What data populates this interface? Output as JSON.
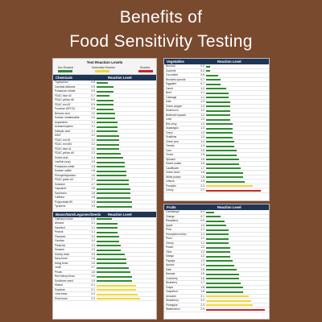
{
  "header": {
    "line1": "Benefits of",
    "line2": "Food Sensitivity Testing"
  },
  "colors": {
    "background": "#7a4a2e",
    "header": "#1f3556",
    "green": "#2e8b2e",
    "yellow": "#f0d72a",
    "red": "#c62828"
  },
  "legend": {
    "title": "Test Reaction Levels",
    "items": [
      {
        "label": "Non-Reactive",
        "color": "#2e8b2e"
      },
      {
        "label": "Moderately Reactive",
        "color": "#f0d72a"
      },
      {
        "label": "Reactive",
        "color": "#c62828"
      }
    ]
  },
  "reaction_level_label": "Reaction Level",
  "panels": [
    {
      "id": "chemicals",
      "title": "Chemicals",
      "max": 3.0,
      "items": [
        {
          "name": "Tryptophan",
          "value": "0.6"
        },
        {
          "name": "Candida albicans",
          "value": "0.9"
        },
        {
          "name": "Potassium nitrate",
          "value": "0.9"
        },
        {
          "name": "FD&C blue #2",
          "value": "0.7"
        },
        {
          "name": "FD&C yellow #6",
          "value": "0.9"
        },
        {
          "name": "FD&C red #3",
          "value": "0.9"
        },
        {
          "name": "Fructose (HFCS)",
          "value": "0.9"
        },
        {
          "name": "Benzoic acid",
          "value": "1.0"
        },
        {
          "name": "Sodium metabisulfite",
          "value": "1.0"
        },
        {
          "name": "Aspartame",
          "value": "1.1"
        },
        {
          "name": "Acetaminophen",
          "value": "1.1"
        },
        {
          "name": "Salicylic acid",
          "value": "1.1"
        },
        {
          "name": "MSG",
          "value": "1.2"
        },
        {
          "name": "FD&C red #4",
          "value": "1.2"
        },
        {
          "name": "FD&C red #40",
          "value": "1.2"
        },
        {
          "name": "FD&C blue #1",
          "value": "1.2"
        },
        {
          "name": "FD&C yellow #5",
          "value": "1.3"
        },
        {
          "name": "Sorbic acid",
          "value": "1.4"
        },
        {
          "name": "Lecithin (soy)",
          "value": "1.5"
        },
        {
          "name": "Potassium nitrite",
          "value": "1.5"
        },
        {
          "name": "Sodium sulfite",
          "value": "1.6"
        },
        {
          "name": "Phenylethylamine",
          "value": "1.6"
        },
        {
          "name": "FD&C green #3",
          "value": "1.7"
        },
        {
          "name": "Solanine",
          "value": "1.7"
        },
        {
          "name": "Capsaicin",
          "value": "1.8"
        },
        {
          "name": "Saccharin",
          "value": "1.8"
        },
        {
          "name": "Caffeine",
          "value": "1.8"
        },
        {
          "name": "Polysorbate 80",
          "value": "1.9"
        },
        {
          "name": "Tyramine",
          "value": "1.9"
        }
      ]
    },
    {
      "id": "beans",
      "title": "Beans/Nuts/Legumes/Seeds",
      "max": 3.0,
      "items": [
        {
          "name": "Garbanzo bean",
          "value": "0.8"
        },
        {
          "name": "Almond",
          "value": "1.1"
        },
        {
          "name": "Hazelnut",
          "value": "1.1"
        },
        {
          "name": "Peanut",
          "value": "1.1"
        },
        {
          "name": "Flaxseed",
          "value": "1.2"
        },
        {
          "name": "Cashew",
          "value": "1.2"
        },
        {
          "name": "Pistachio",
          "value": "1.3"
        },
        {
          "name": "Sesame",
          "value": "1.3"
        },
        {
          "name": "Kidney bean",
          "value": "1.5"
        },
        {
          "name": "Navy bean",
          "value": "1.6"
        },
        {
          "name": "Mung bean",
          "value": "1.6"
        },
        {
          "name": "Lentil",
          "value": "1.7"
        },
        {
          "name": "Pecan",
          "value": "1.8"
        },
        {
          "name": "Red kidney bean",
          "value": "1.9"
        },
        {
          "name": "Sunflower seed",
          "value": "1.9"
        },
        {
          "name": "Walnut",
          "value": "2.1"
        },
        {
          "name": "Soybean",
          "value": "2.1"
        },
        {
          "name": "Lima bean",
          "value": "2.2"
        },
        {
          "name": "Pinto bean",
          "value": "2.3"
        }
      ]
    },
    {
      "id": "vegetables",
      "title": "Vegetables",
      "max": 3.0,
      "items": [
        {
          "name": "Broccoli",
          "value": "0.2"
        },
        {
          "name": "Zucchini",
          "value": "0.2"
        },
        {
          "name": "Cucumber",
          "value": "0.6"
        },
        {
          "name": "Brussels sprouts",
          "value": "0.7"
        },
        {
          "name": "Eggplant",
          "value": "0.7"
        },
        {
          "name": "Carrot",
          "value": "1.0"
        },
        {
          "name": "Beet",
          "value": "1.1"
        },
        {
          "name": "Cabbage",
          "value": "1.1"
        },
        {
          "name": "Kale",
          "value": "1.2"
        },
        {
          "name": "Green pepper",
          "value": "1.2"
        },
        {
          "name": "Mushroom",
          "value": "1.2"
        },
        {
          "name": "Butternut squash",
          "value": "1.2"
        },
        {
          "name": "Leek",
          "value": "1.2"
        },
        {
          "name": "Bok choy",
          "value": "1.3"
        },
        {
          "name": "Asparagus",
          "value": "1.3"
        },
        {
          "name": "Onion",
          "value": "1.3"
        },
        {
          "name": "Scallions",
          "value": "1.3"
        },
        {
          "name": "Green pea",
          "value": "1.4"
        },
        {
          "name": "Tomato",
          "value": "1.4"
        },
        {
          "name": "Corn",
          "value": "1.5"
        },
        {
          "name": "Chard",
          "value": "1.5"
        },
        {
          "name": "Spinach",
          "value": "1.6"
        },
        {
          "name": "Sweet potato",
          "value": "1.6"
        },
        {
          "name": "Cauliflower",
          "value": "1.7"
        },
        {
          "name": "Green bean",
          "value": "1.8"
        },
        {
          "name": "White potato",
          "value": "1.8"
        },
        {
          "name": "Lettuce",
          "value": "1.9"
        },
        {
          "name": "Pumpkin",
          "value": "2.3"
        },
        {
          "name": "Celery",
          "value": "2.7"
        }
      ]
    },
    {
      "id": "fruits",
      "title": "Fruits",
      "max": 3.0,
      "items": [
        {
          "name": "Cantaloupe",
          "value": "0.4"
        },
        {
          "name": "Orange",
          "value": "0.7"
        },
        {
          "name": "Raspberry",
          "value": "0.9"
        },
        {
          "name": "Apple",
          "value": "1.0"
        },
        {
          "name": "Pear",
          "value": "1.1"
        },
        {
          "name": "Honeydew melon",
          "value": "1.1"
        },
        {
          "name": "Plum",
          "value": "1.1"
        },
        {
          "name": "Cherry",
          "value": "1.1"
        },
        {
          "name": "Peach",
          "value": "1.2"
        },
        {
          "name": "Olive",
          "value": "1.2"
        },
        {
          "name": "Mango",
          "value": "1.2"
        },
        {
          "name": "Papaya",
          "value": "1.3"
        },
        {
          "name": "Apricot",
          "value": "1.4"
        },
        {
          "name": "Date",
          "value": "1.5"
        },
        {
          "name": "Banana",
          "value": "1.6"
        },
        {
          "name": "Cranberry",
          "value": "1.6"
        },
        {
          "name": "Blueberry",
          "value": "1.7"
        },
        {
          "name": "Grape",
          "value": "1.8"
        },
        {
          "name": "Grapefruit",
          "value": "1.8"
        },
        {
          "name": "Avocado",
          "value": "2.1"
        },
        {
          "name": "Strawberry",
          "value": "2.2"
        },
        {
          "name": "Pineapple",
          "value": "2.3"
        },
        {
          "name": "Watermelon",
          "value": "2.9"
        }
      ]
    }
  ]
}
